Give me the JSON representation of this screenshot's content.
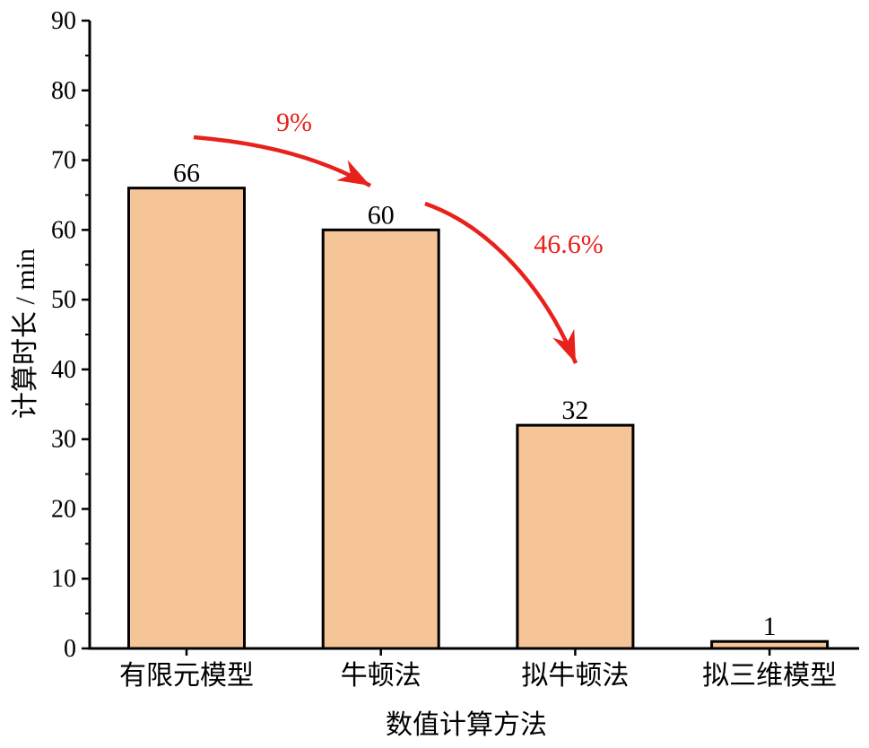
{
  "chart_data": {
    "type": "bar",
    "title": "",
    "xlabel": "数值计算方法",
    "ylabel": "计算时长 / min",
    "categories": [
      "有限元模型",
      "牛顿法",
      "拟牛顿法",
      "拟三维模型"
    ],
    "values": [
      66,
      60,
      32,
      1
    ],
    "data_labels": [
      "66",
      "60",
      "32",
      "1"
    ],
    "ylim": [
      0,
      90
    ],
    "yticks": [
      0,
      10,
      20,
      30,
      40,
      50,
      60,
      70,
      80,
      90
    ],
    "ytick_labels": [
      "0",
      "10",
      "20",
      "30",
      "40",
      "50",
      "60",
      "70",
      "80",
      "90"
    ],
    "grid": false,
    "legend": "none",
    "bar_color": "#f5c497",
    "bar_edge_color": "#000000",
    "annotations": [
      {
        "text": "9%",
        "from_category": "有限元模型",
        "to_category": "牛顿法",
        "color": "#e8211b"
      },
      {
        "text": "46.6%",
        "from_category": "牛顿法",
        "to_category": "拟牛顿法",
        "color": "#e8211b"
      }
    ]
  }
}
